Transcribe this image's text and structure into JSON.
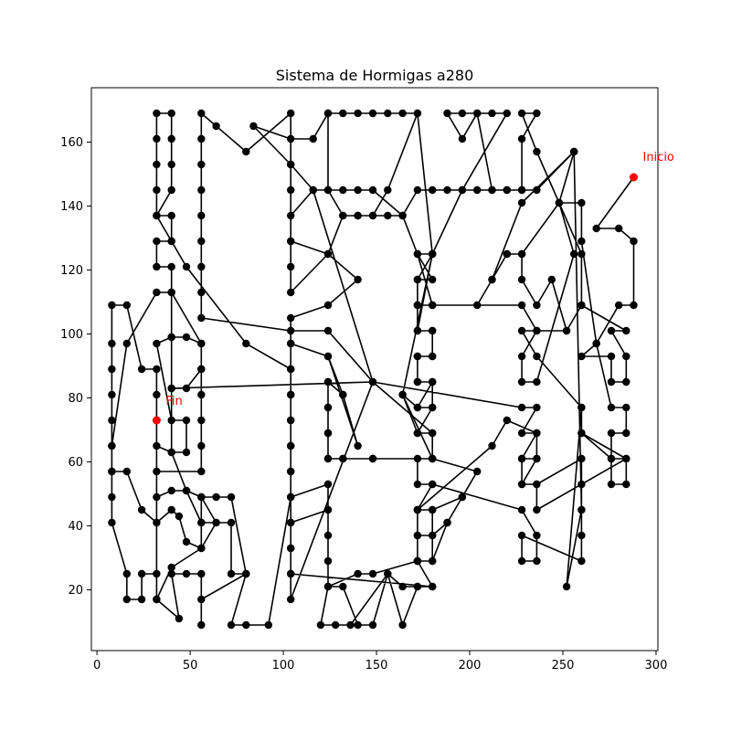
{
  "chart_data": {
    "type": "line",
    "title": "Sistema de Hormigas a280",
    "xlabel": "",
    "ylabel": "",
    "xlim": [
      -3,
      301
    ],
    "ylim": [
      1,
      177
    ],
    "xticks": [
      0,
      50,
      100,
      150,
      200,
      250,
      300
    ],
    "yticks": [
      20,
      40,
      60,
      80,
      100,
      120,
      140,
      160
    ],
    "grid": false,
    "path_color": "#000000",
    "marker_color": "#000000",
    "highlight_color": "#ff0000",
    "start": {
      "label": "Inicio",
      "x": 288,
      "y": 149
    },
    "end": {
      "label": "Fin",
      "x": 32,
      "y": 73
    },
    "path": [
      [
        288,
        149
      ],
      [
        268,
        133
      ],
      [
        280,
        133
      ],
      [
        288,
        129
      ],
      [
        288,
        109
      ],
      [
        280,
        109
      ],
      [
        268,
        97
      ],
      [
        260,
        93
      ],
      [
        276,
        93
      ],
      [
        276,
        85
      ],
      [
        284,
        85
      ],
      [
        284,
        93
      ],
      [
        276,
        101
      ],
      [
        284,
        101
      ],
      [
        260,
        109
      ],
      [
        252,
        101
      ],
      [
        236,
        101
      ],
      [
        228,
        101
      ],
      [
        236,
        93
      ],
      [
        260,
        77
      ],
      [
        260,
        69
      ],
      [
        284,
        61
      ],
      [
        276,
        61
      ],
      [
        276,
        69
      ],
      [
        284,
        69
      ],
      [
        284,
        77
      ],
      [
        276,
        77
      ],
      [
        268,
        97
      ],
      [
        260,
        129
      ],
      [
        260,
        141
      ],
      [
        248,
        141
      ],
      [
        256,
        125
      ],
      [
        236,
        85
      ],
      [
        228,
        85
      ],
      [
        228,
        93
      ],
      [
        236,
        101
      ],
      [
        228,
        109
      ],
      [
        180,
        109
      ],
      [
        172,
        109
      ],
      [
        172,
        117
      ],
      [
        180,
        117
      ],
      [
        172,
        125
      ],
      [
        180,
        125
      ],
      [
        172,
        101
      ],
      [
        180,
        101
      ],
      [
        180,
        93
      ],
      [
        172,
        93
      ],
      [
        172,
        85
      ],
      [
        180,
        85
      ],
      [
        172,
        77
      ],
      [
        180,
        77
      ],
      [
        172,
        69
      ],
      [
        180,
        69
      ],
      [
        180,
        61
      ],
      [
        172,
        61
      ],
      [
        172,
        53
      ],
      [
        180,
        53
      ],
      [
        172,
        45
      ],
      [
        180,
        45
      ],
      [
        180,
        37
      ],
      [
        172,
        37
      ],
      [
        172,
        29
      ],
      [
        180,
        29
      ],
      [
        188,
        41
      ],
      [
        196,
        49
      ],
      [
        204,
        57
      ],
      [
        180,
        61
      ],
      [
        148,
        61
      ],
      [
        132,
        61
      ],
      [
        124,
        61
      ],
      [
        124,
        69
      ],
      [
        124,
        77
      ],
      [
        124,
        85
      ],
      [
        132,
        81
      ],
      [
        140,
        65
      ],
      [
        124,
        93
      ],
      [
        104,
        97
      ],
      [
        104,
        105
      ],
      [
        124,
        109
      ],
      [
        140,
        117
      ],
      [
        124,
        125
      ],
      [
        104,
        129
      ],
      [
        104,
        137
      ],
      [
        116,
        145
      ],
      [
        124,
        145
      ],
      [
        132,
        137
      ],
      [
        140,
        137
      ],
      [
        148,
        137
      ],
      [
        156,
        137
      ],
      [
        164,
        137
      ],
      [
        172,
        145
      ],
      [
        180,
        145
      ],
      [
        188,
        145
      ],
      [
        196,
        145
      ],
      [
        204,
        145
      ],
      [
        212,
        145
      ],
      [
        220,
        145
      ],
      [
        228,
        145
      ],
      [
        236,
        145
      ],
      [
        256,
        157
      ],
      [
        228,
        141
      ],
      [
        212,
        117
      ],
      [
        220,
        125
      ],
      [
        228,
        125
      ],
      [
        228,
        117
      ],
      [
        236,
        109
      ],
      [
        244,
        117
      ],
      [
        252,
        101
      ],
      [
        260,
        109
      ],
      [
        260,
        125
      ],
      [
        236,
        157
      ],
      [
        228,
        169
      ],
      [
        236,
        169
      ],
      [
        228,
        161
      ],
      [
        228,
        145
      ],
      [
        220,
        145
      ],
      [
        212,
        145
      ],
      [
        204,
        169
      ],
      [
        196,
        169
      ],
      [
        188,
        169
      ],
      [
        196,
        161
      ],
      [
        204,
        169
      ],
      [
        212,
        169
      ],
      [
        220,
        169
      ],
      [
        196,
        145
      ],
      [
        180,
        125
      ],
      [
        164,
        81
      ],
      [
        172,
        69
      ],
      [
        180,
        69
      ],
      [
        148,
        85
      ],
      [
        116,
        145
      ],
      [
        104,
        153
      ],
      [
        104,
        169
      ],
      [
        80,
        157
      ],
      [
        64,
        165
      ],
      [
        56,
        169
      ],
      [
        56,
        161
      ],
      [
        56,
        153
      ],
      [
        56,
        145
      ],
      [
        56,
        137
      ],
      [
        56,
        129
      ],
      [
        56,
        121
      ],
      [
        56,
        113
      ],
      [
        56,
        105
      ],
      [
        104,
        101
      ],
      [
        124,
        101
      ],
      [
        148,
        85
      ],
      [
        228,
        77
      ],
      [
        236,
        77
      ],
      [
        228,
        69
      ],
      [
        236,
        69
      ],
      [
        228,
        61
      ],
      [
        236,
        61
      ],
      [
        228,
        53
      ],
      [
        236,
        53
      ],
      [
        260,
        61
      ],
      [
        260,
        53
      ],
      [
        260,
        45
      ],
      [
        260,
        37
      ],
      [
        260,
        29
      ],
      [
        228,
        37
      ],
      [
        228,
        29
      ],
      [
        236,
        29
      ],
      [
        236,
        37
      ],
      [
        228,
        45
      ],
      [
        180,
        53
      ],
      [
        172,
        45
      ],
      [
        212,
        65
      ],
      [
        220,
        73
      ],
      [
        236,
        69
      ],
      [
        236,
        61
      ],
      [
        228,
        61
      ],
      [
        228,
        53
      ],
      [
        236,
        53
      ],
      [
        236,
        45
      ],
      [
        284,
        61
      ],
      [
        284,
        53
      ],
      [
        276,
        53
      ],
      [
        276,
        61
      ],
      [
        260,
        69
      ],
      [
        260,
        77
      ],
      [
        252,
        21
      ],
      [
        260,
        45
      ],
      [
        256,
        157
      ],
      [
        248,
        141
      ],
      [
        228,
        125
      ],
      [
        220,
        125
      ],
      [
        212,
        117
      ],
      [
        204,
        109
      ],
      [
        180,
        109
      ],
      [
        172,
        125
      ],
      [
        164,
        137
      ],
      [
        148,
        145
      ],
      [
        140,
        145
      ],
      [
        132,
        145
      ],
      [
        124,
        145
      ],
      [
        124,
        169
      ],
      [
        132,
        169
      ],
      [
        140,
        169
      ],
      [
        148,
        169
      ],
      [
        156,
        169
      ],
      [
        164,
        169
      ],
      [
        172,
        169
      ],
      [
        156,
        145
      ],
      [
        148,
        137
      ],
      [
        140,
        137
      ],
      [
        132,
        137
      ],
      [
        124,
        125
      ],
      [
        104,
        113
      ],
      [
        104,
        121
      ],
      [
        104,
        129
      ],
      [
        104,
        145
      ],
      [
        104,
        153
      ],
      [
        84,
        165
      ],
      [
        104,
        161
      ],
      [
        116,
        161
      ],
      [
        124,
        169
      ],
      [
        172,
        169
      ],
      [
        180,
        125
      ],
      [
        172,
        117
      ],
      [
        172,
        109
      ],
      [
        172,
        101
      ],
      [
        180,
        101
      ],
      [
        180,
        93
      ],
      [
        172,
        93
      ],
      [
        172,
        85
      ],
      [
        180,
        85
      ],
      [
        180,
        77
      ],
      [
        172,
        77
      ],
      [
        164,
        81
      ],
      [
        180,
        61
      ],
      [
        148,
        61
      ],
      [
        132,
        61
      ],
      [
        124,
        61
      ],
      [
        124,
        69
      ],
      [
        124,
        77
      ],
      [
        124,
        85
      ],
      [
        132,
        81
      ],
      [
        124,
        93
      ],
      [
        104,
        97
      ],
      [
        104,
        89
      ],
      [
        104,
        81
      ],
      [
        104,
        73
      ],
      [
        104,
        65
      ],
      [
        104,
        57
      ],
      [
        104,
        49
      ],
      [
        124,
        53
      ],
      [
        124,
        45
      ],
      [
        124,
        37
      ],
      [
        124,
        29
      ],
      [
        124,
        21
      ],
      [
        132,
        21
      ],
      [
        140,
        9
      ],
      [
        148,
        9
      ],
      [
        156,
        25
      ],
      [
        164,
        9
      ],
      [
        172,
        21
      ],
      [
        180,
        21
      ],
      [
        172,
        29
      ],
      [
        172,
        37
      ],
      [
        172,
        45
      ],
      [
        180,
        45
      ],
      [
        196,
        49
      ],
      [
        188,
        41
      ],
      [
        180,
        37
      ],
      [
        180,
        29
      ],
      [
        172,
        29
      ],
      [
        148,
        25
      ],
      [
        140,
        25
      ],
      [
        124,
        21
      ],
      [
        120,
        9
      ],
      [
        128,
        9
      ],
      [
        136,
        9
      ],
      [
        156,
        25
      ],
      [
        164,
        21
      ],
      [
        172,
        21
      ],
      [
        180,
        21
      ],
      [
        104,
        25
      ],
      [
        104,
        33
      ],
      [
        104,
        41
      ],
      [
        124,
        45
      ],
      [
        124,
        53
      ],
      [
        104,
        49
      ],
      [
        92,
        9
      ],
      [
        80,
        9
      ],
      [
        72,
        9
      ],
      [
        80,
        25
      ],
      [
        72,
        25
      ],
      [
        72,
        41
      ],
      [
        64,
        41
      ],
      [
        56,
        41
      ],
      [
        56,
        49
      ],
      [
        64,
        49
      ],
      [
        72,
        49
      ],
      [
        80,
        25
      ],
      [
        56,
        17
      ],
      [
        56,
        9
      ],
      [
        56,
        25
      ],
      [
        48,
        25
      ],
      [
        40,
        25
      ],
      [
        44,
        11
      ],
      [
        32,
        17
      ],
      [
        32,
        25
      ],
      [
        24,
        25
      ],
      [
        24,
        17
      ],
      [
        16,
        17
      ],
      [
        16,
        25
      ],
      [
        8,
        41
      ],
      [
        8,
        49
      ],
      [
        8,
        57
      ],
      [
        8,
        65
      ],
      [
        8,
        73
      ],
      [
        8,
        81
      ],
      [
        8,
        89
      ],
      [
        8,
        97
      ],
      [
        8,
        109
      ],
      [
        16,
        109
      ],
      [
        24,
        89
      ],
      [
        32,
        89
      ],
      [
        32,
        81
      ],
      [
        32,
        73
      ],
      [
        32,
        65
      ],
      [
        40,
        63
      ],
      [
        48,
        63
      ],
      [
        48,
        73
      ],
      [
        40,
        73
      ],
      [
        32,
        97
      ],
      [
        40,
        99
      ],
      [
        48,
        99
      ],
      [
        56,
        97
      ],
      [
        56,
        89
      ],
      [
        56,
        81
      ],
      [
        56,
        73
      ],
      [
        56,
        65
      ],
      [
        56,
        57
      ],
      [
        32,
        57
      ],
      [
        32,
        49
      ],
      [
        40,
        51
      ],
      [
        48,
        51
      ],
      [
        56,
        49
      ],
      [
        64,
        41
      ],
      [
        56,
        33
      ],
      [
        48,
        35
      ],
      [
        44,
        43
      ],
      [
        40,
        45
      ],
      [
        32,
        41
      ],
      [
        24,
        45
      ],
      [
        16,
        57
      ],
      [
        8,
        57
      ],
      [
        8,
        65
      ],
      [
        16,
        97
      ],
      [
        32,
        113
      ],
      [
        40,
        113
      ],
      [
        40,
        121
      ],
      [
        32,
        121
      ],
      [
        32,
        129
      ],
      [
        40,
        129
      ],
      [
        32,
        137
      ],
      [
        32,
        145
      ],
      [
        32,
        153
      ],
      [
        32,
        161
      ],
      [
        32,
        169
      ],
      [
        40,
        169
      ],
      [
        40,
        161
      ],
      [
        40,
        153
      ],
      [
        40,
        145
      ],
      [
        32,
        137
      ],
      [
        40,
        137
      ],
      [
        40,
        129
      ],
      [
        48,
        121
      ],
      [
        80,
        97
      ],
      [
        104,
        89
      ],
      [
        104,
        81
      ],
      [
        104,
        73
      ],
      [
        104,
        65
      ],
      [
        104,
        57
      ],
      [
        104,
        49
      ],
      [
        104,
        41
      ],
      [
        104,
        33
      ],
      [
        104,
        25
      ],
      [
        104,
        17
      ],
      [
        148,
        85
      ],
      [
        40,
        83
      ],
      [
        48,
        83
      ],
      [
        56,
        89
      ],
      [
        56,
        97
      ],
      [
        40,
        113
      ],
      [
        40,
        99
      ],
      [
        40,
        83
      ],
      [
        40,
        63
      ],
      [
        48,
        51
      ],
      [
        56,
        41
      ],
      [
        56,
        33
      ],
      [
        40,
        27
      ],
      [
        32,
        17
      ],
      [
        32,
        73
      ]
    ]
  }
}
